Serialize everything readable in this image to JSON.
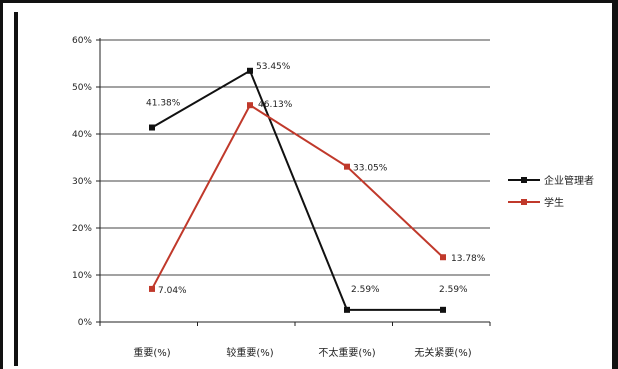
{
  "chart_data": {
    "type": "line",
    "categories": [
      "重要(%)",
      "较重要(%)",
      "不太重要(%)",
      "无关紧要(%)"
    ],
    "series": [
      {
        "name": "企业管理者",
        "color": "#111111",
        "values": [
          41.38,
          53.45,
          2.59,
          2.59
        ],
        "labels": [
          "41.38%",
          "53.45%",
          "2.59%",
          "2.59%"
        ]
      },
      {
        "name": "学生",
        "color": "#c0392b",
        "values": [
          7.04,
          46.13,
          33.05,
          13.78
        ],
        "labels": [
          "7.04%",
          "46.13%",
          "33.05%",
          "13.78%"
        ]
      }
    ],
    "ylim": [
      0,
      60
    ],
    "yticks": [
      "0%",
      "10%",
      "20%",
      "30%",
      "40%",
      "50%",
      "60%"
    ],
    "grid": true,
    "legend": "right"
  }
}
